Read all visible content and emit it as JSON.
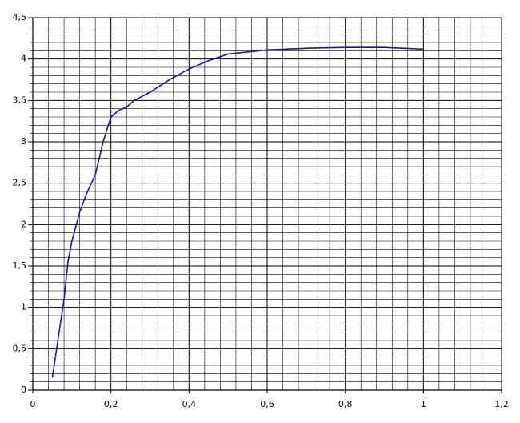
{
  "chart_data": {
    "type": "line",
    "x": [
      0.05,
      0.08,
      0.09,
      0.1,
      0.12,
      0.14,
      0.16,
      0.18,
      0.2,
      0.22,
      0.24,
      0.26,
      0.3,
      0.35,
      0.4,
      0.45,
      0.5,
      0.6,
      0.7,
      0.8,
      0.9,
      1.0
    ],
    "series": [
      {
        "color": "#1a1a8c",
        "values": [
          0.15,
          1.1,
          1.55,
          1.8,
          2.15,
          2.4,
          2.6,
          3.0,
          3.3,
          3.38,
          3.42,
          3.5,
          3.6,
          3.75,
          3.88,
          3.98,
          4.06,
          4.11,
          4.13,
          4.14,
          4.14,
          4.12
        ]
      }
    ],
    "xlim": [
      0,
      1.2
    ],
    "xticks": [
      0,
      {
        "value": 0.2,
        "label": "0,2"
      },
      {
        "value": 0.4,
        "label": "0,4"
      },
      {
        "value": 0.6,
        "label": "0,6"
      },
      {
        "value": 0.8,
        "label": "0,8"
      },
      1,
      {
        "value": 1.2,
        "label": "1,2"
      }
    ],
    "ylim": [
      0,
      4.5
    ],
    "yticks": [
      0,
      {
        "value": 0.5,
        "label": "0,5"
      },
      1,
      {
        "value": 1.5,
        "label": "1,5"
      },
      2,
      {
        "value": 2.5,
        "label": "2,5"
      },
      3,
      {
        "value": 3.5,
        "label": "3,5"
      },
      4,
      {
        "value": 4.5,
        "label": "4,5"
      }
    ],
    "grid": true
  }
}
